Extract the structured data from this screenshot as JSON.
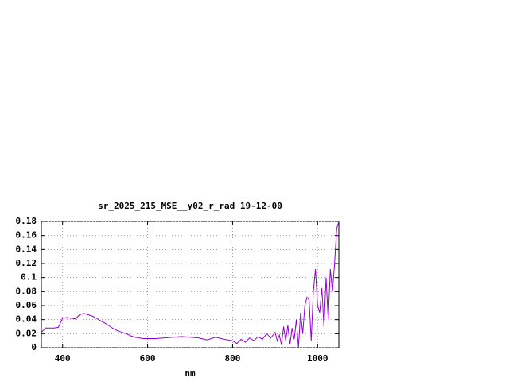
{
  "chart_data": {
    "type": "line",
    "title": "sr_2025_215_MSE__y02_r_rad 19-12-00",
    "x_label": "nm",
    "x": [
      350,
      360,
      370,
      380,
      390,
      400,
      410,
      420,
      430,
      440,
      450,
      460,
      470,
      480,
      490,
      500,
      510,
      520,
      530,
      540,
      550,
      560,
      570,
      580,
      590,
      600,
      620,
      640,
      660,
      680,
      700,
      720,
      740,
      760,
      780,
      800,
      810,
      820,
      830,
      840,
      850,
      860,
      870,
      880,
      890,
      900,
      905,
      910,
      915,
      920,
      925,
      930,
      935,
      940,
      945,
      950,
      955,
      960,
      965,
      970,
      975,
      980,
      985,
      990,
      995,
      1000,
      1005,
      1010,
      1015,
      1020,
      1025,
      1030,
      1035,
      1040,
      1045,
      1050
    ],
    "series": [
      {
        "color": "#9400d3",
        "values": [
          0.022,
          0.028,
          0.028,
          0.028,
          0.029,
          0.042,
          0.043,
          0.042,
          0.041,
          0.047,
          0.049,
          0.047,
          0.045,
          0.042,
          0.038,
          0.035,
          0.031,
          0.027,
          0.024,
          0.022,
          0.02,
          0.017,
          0.015,
          0.014,
          0.013,
          0.013,
          0.013,
          0.014,
          0.015,
          0.016,
          0.015,
          0.014,
          0.011,
          0.015,
          0.012,
          0.01,
          0.006,
          0.012,
          0.008,
          0.014,
          0.01,
          0.016,
          0.012,
          0.02,
          0.014,
          0.022,
          0.01,
          0.018,
          0.004,
          0.03,
          0.01,
          0.032,
          0.005,
          0.028,
          0.012,
          0.04,
          0.0,
          0.05,
          0.02,
          0.06,
          0.072,
          0.068,
          0.01,
          0.08,
          0.112,
          0.06,
          0.05,
          0.085,
          0.03,
          0.1,
          0.04,
          0.112,
          0.08,
          0.12,
          0.17,
          0.18
        ]
      }
    ],
    "xlim": [
      350,
      1050
    ],
    "ylim": [
      0,
      0.18
    ],
    "xticks": [
      400,
      600,
      800,
      1000
    ],
    "yticks": [
      0,
      0.02,
      0.04,
      0.06,
      0.08,
      0.1,
      0.12,
      0.14,
      0.16,
      0.18
    ],
    "grid": true
  }
}
